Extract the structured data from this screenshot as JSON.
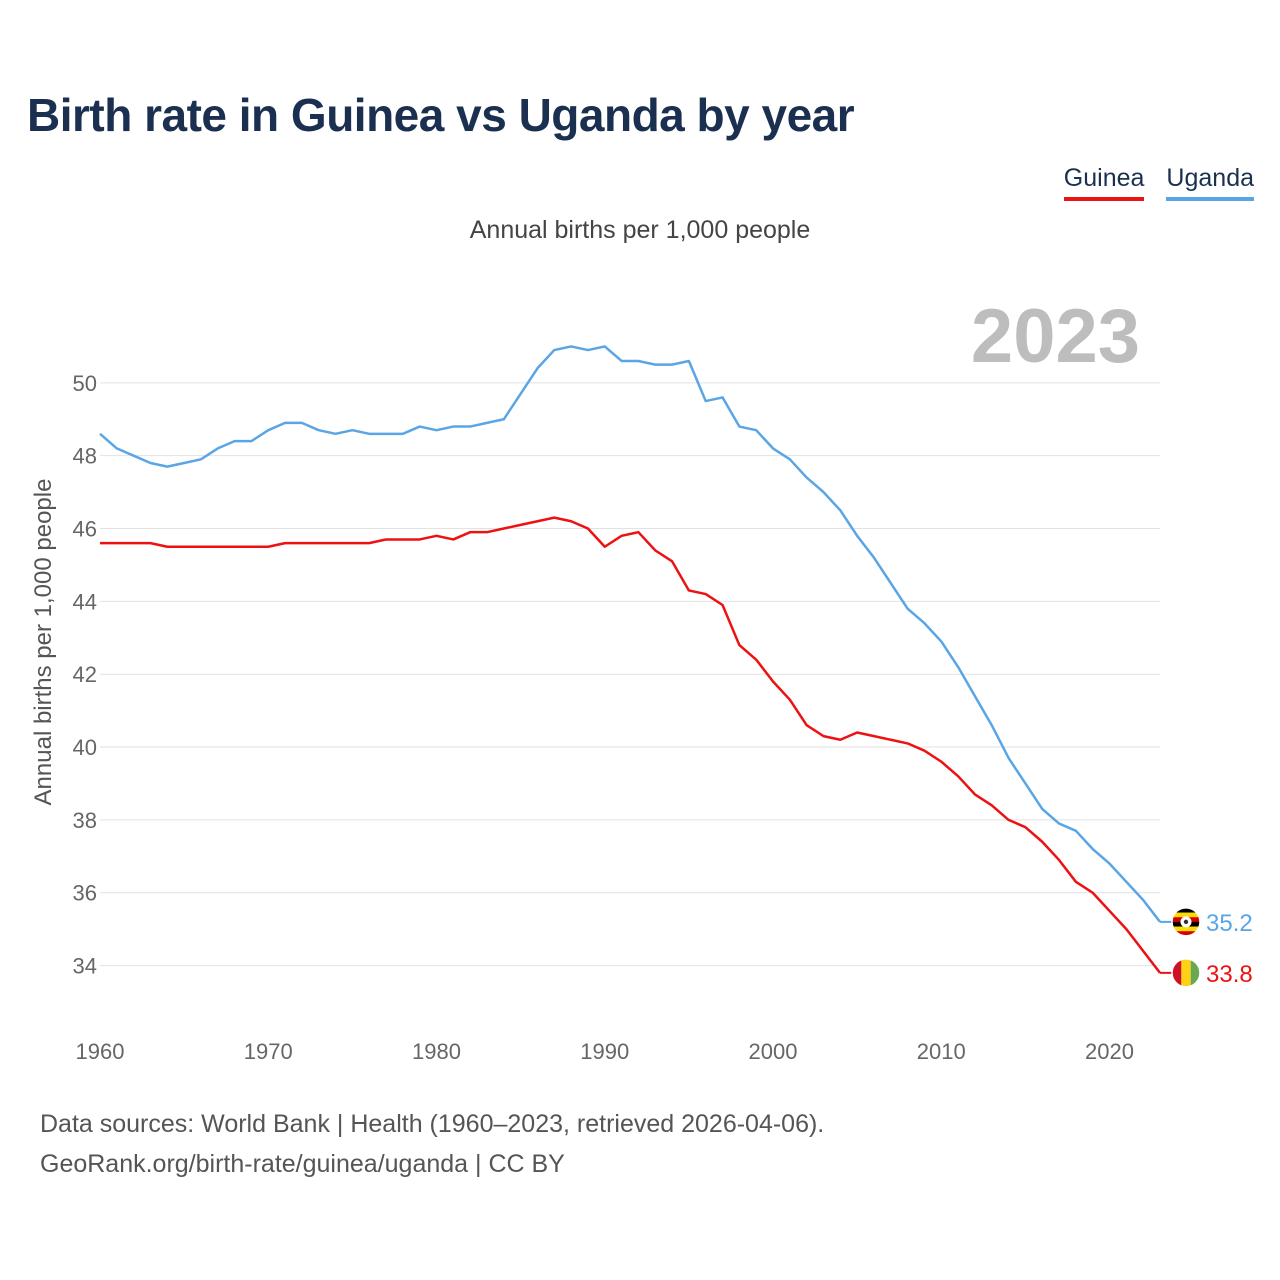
{
  "title": "Birth rate in Guinea vs Uganda by year",
  "subtitle": "Annual births per 1,000 people",
  "legend": [
    {
      "label": "Guinea",
      "color": "#ee1111"
    },
    {
      "label": "Uganda",
      "color": "#5aa5e6"
    }
  ],
  "footer": {
    "line1": "Data sources: World Bank | Health (1960–2023, retrieved 2026-04-06).",
    "line2": "GeoRank.org/birth-rate/guinea/uganda | CC BY"
  },
  "chart_data": {
    "type": "line",
    "title": "Birth rate in Guinea vs Uganda by year",
    "xlabel": "",
    "ylabel": "Annual births per 1,000 people",
    "year_label": "2023",
    "xlim": [
      1960,
      2023
    ],
    "ylim": [
      33,
      52
    ],
    "x_ticks": [
      1960,
      1970,
      1980,
      1990,
      2000,
      2010,
      2020
    ],
    "y_ticks": [
      34,
      36,
      38,
      40,
      42,
      44,
      46,
      48,
      50
    ],
    "grid": true,
    "x": [
      1960,
      1961,
      1962,
      1963,
      1964,
      1965,
      1966,
      1967,
      1968,
      1969,
      1970,
      1971,
      1972,
      1973,
      1974,
      1975,
      1976,
      1977,
      1978,
      1979,
      1980,
      1981,
      1982,
      1983,
      1984,
      1985,
      1986,
      1987,
      1988,
      1989,
      1990,
      1991,
      1992,
      1993,
      1994,
      1995,
      1996,
      1997,
      1998,
      1999,
      2000,
      2001,
      2002,
      2003,
      2004,
      2005,
      2006,
      2007,
      2008,
      2009,
      2010,
      2011,
      2012,
      2013,
      2014,
      2015,
      2016,
      2017,
      2018,
      2019,
      2020,
      2021,
      2022,
      2023
    ],
    "series": [
      {
        "name": "Guinea",
        "color": "#ee1111",
        "end_label": "33.8",
        "values": [
          45.6,
          45.6,
          45.6,
          45.6,
          45.5,
          45.5,
          45.5,
          45.5,
          45.5,
          45.5,
          45.5,
          45.6,
          45.6,
          45.6,
          45.6,
          45.6,
          45.6,
          45.7,
          45.7,
          45.7,
          45.8,
          45.7,
          45.9,
          45.9,
          46.0,
          46.1,
          46.2,
          46.3,
          46.2,
          46.0,
          45.5,
          45.8,
          45.9,
          45.4,
          45.1,
          44.3,
          44.2,
          43.9,
          42.8,
          42.4,
          41.8,
          41.3,
          40.6,
          40.3,
          40.2,
          40.4,
          40.3,
          40.2,
          40.1,
          39.9,
          39.6,
          39.2,
          38.7,
          38.4,
          38.0,
          37.8,
          37.4,
          36.9,
          36.3,
          36.0,
          35.5,
          35.0,
          34.4,
          33.8
        ]
      },
      {
        "name": "Uganda",
        "color": "#5aa5e6",
        "end_label": "35.2",
        "values": [
          48.6,
          48.2,
          48.0,
          47.8,
          47.7,
          47.8,
          47.9,
          48.2,
          48.4,
          48.4,
          48.7,
          48.9,
          48.9,
          48.7,
          48.6,
          48.7,
          48.6,
          48.6,
          48.6,
          48.8,
          48.7,
          48.8,
          48.8,
          48.9,
          49.0,
          49.7,
          50.4,
          50.9,
          51.0,
          50.9,
          51.0,
          50.6,
          50.6,
          50.5,
          50.5,
          50.6,
          49.5,
          49.6,
          48.8,
          48.7,
          48.2,
          47.9,
          47.4,
          47.0,
          46.5,
          45.8,
          45.2,
          44.5,
          43.8,
          43.4,
          42.9,
          42.2,
          41.4,
          40.6,
          39.7,
          39.0,
          38.3,
          37.9,
          37.7,
          37.2,
          36.8,
          36.3,
          35.8,
          35.2
        ]
      }
    ]
  }
}
